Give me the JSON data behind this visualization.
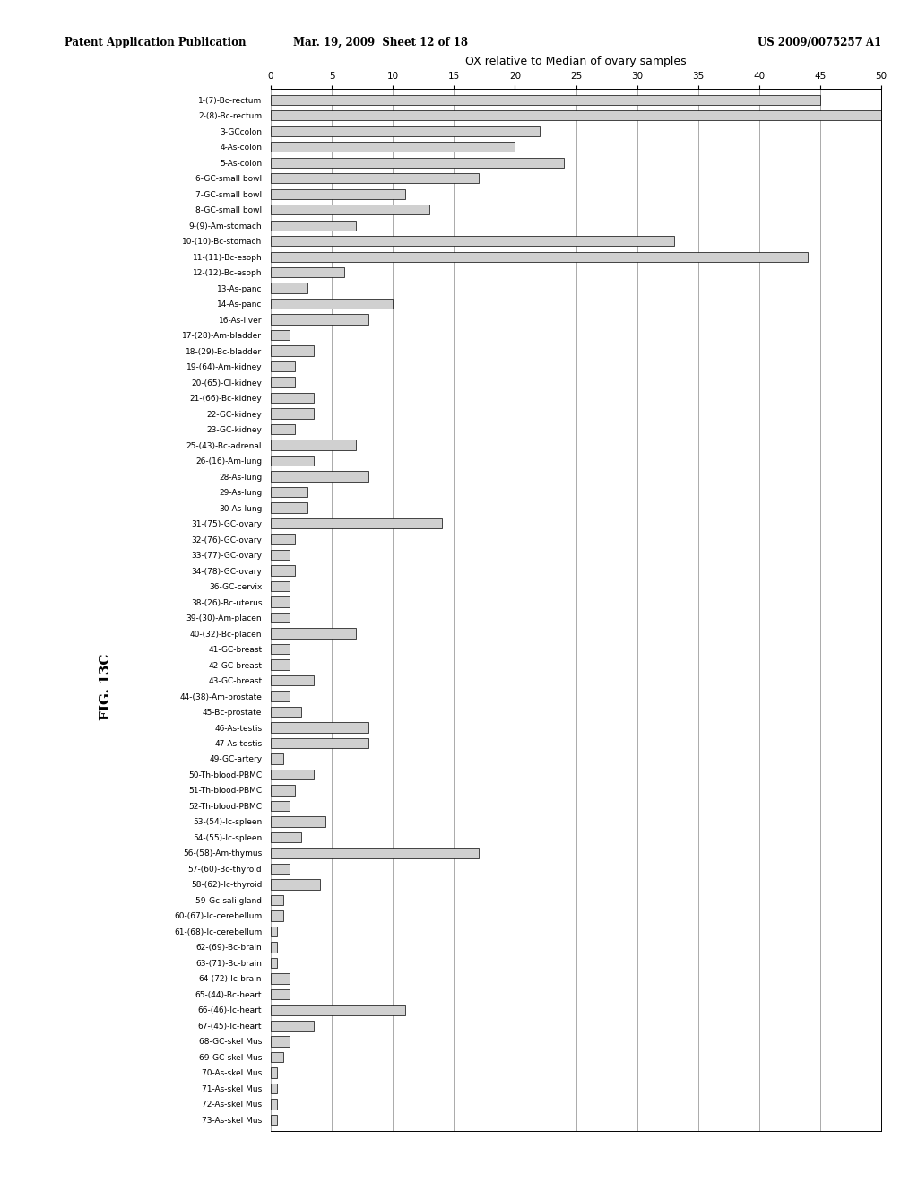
{
  "title": "OX relative to Median of ovary samples",
  "header_left": "Patent Application Publication",
  "header_center": "Mar. 19, 2009  Sheet 12 of 18",
  "header_right": "US 2009/0075257 A1",
  "fig_label": "FIG. 13C",
  "xlim": [
    0,
    50
  ],
  "xticks": [
    0,
    5,
    10,
    15,
    20,
    25,
    30,
    35,
    40,
    45,
    50
  ],
  "categories": [
    "1-(7)-Bc-rectum",
    "2-(8)-Bc-rectum",
    "3-GCcolon",
    "4-As-colon",
    "5-As-colon",
    "6-GC-small bowl",
    "7-GC-small bowl",
    "8-GC-small bowl",
    "9-(9)-Am-stomach",
    "10-(10)-Bc-stomach",
    "11-(11)-Bc-esoph",
    "12-(12)-Bc-esoph",
    "13-As-panc",
    "14-As-panc",
    "16-As-liver",
    "17-(28)-Am-bladder",
    "18-(29)-Bc-bladder",
    "19-(64)-Am-kidney",
    "20-(65)-Cl-kidney",
    "21-(66)-Bc-kidney",
    "22-GC-kidney",
    "23-GC-kidney",
    "25-(43)-Bc-adrenal",
    "26-(16)-Am-lung",
    "28-As-lung",
    "29-As-lung",
    "30-As-lung",
    "31-(75)-GC-ovary",
    "32-(76)-GC-ovary",
    "33-(77)-GC-ovary",
    "34-(78)-GC-ovary",
    "36-GC-cervix",
    "38-(26)-Bc-uterus",
    "39-(30)-Am-placen",
    "40-(32)-Bc-placen",
    "41-GC-breast",
    "42-GC-breast",
    "43-GC-breast",
    "44-(38)-Am-prostate",
    "45-Bc-prostate",
    "46-As-testis",
    "47-As-testis",
    "49-GC-artery",
    "50-Th-blood-PBMC",
    "51-Th-blood-PBMC",
    "52-Th-blood-PBMC",
    "53-(54)-lc-spleen",
    "54-(55)-lc-spleen",
    "56-(58)-Am-thymus",
    "57-(60)-Bc-thyroid",
    "58-(62)-lc-thyroid",
    "59-Gc-sali gland",
    "60-(67)-lc-cerebellum",
    "61-(68)-lc-cerebellum",
    "62-(69)-Bc-brain",
    "63-(71)-Bc-brain",
    "64-(72)-lc-brain",
    "65-(44)-Bc-heart",
    "66-(46)-lc-heart",
    "67-(45)-lc-heart",
    "68-GC-skel Mus",
    "69-GC-skel Mus",
    "70-As-skel Mus",
    "71-As-skel Mus",
    "72-As-skel Mus",
    "73-As-skel Mus"
  ],
  "values": [
    45,
    50,
    22,
    20,
    24,
    17,
    11,
    13,
    7,
    33,
    44,
    6,
    3,
    10,
    8,
    1.5,
    3.5,
    2,
    2,
    3.5,
    3.5,
    2,
    7,
    3.5,
    8,
    3,
    3,
    14,
    2,
    1.5,
    2,
    1.5,
    1.5,
    1.5,
    7,
    1.5,
    1.5,
    3.5,
    1.5,
    2.5,
    8,
    8,
    1,
    3.5,
    2,
    1.5,
    4.5,
    2.5,
    17,
    1.5,
    4,
    1,
    1,
    0.5,
    0.5,
    0.5,
    1.5,
    1.5,
    11,
    3.5,
    1.5,
    1,
    0.5,
    0.5,
    0.5,
    0.5
  ],
  "bar_color": "#d0d0d0",
  "bar_edge_color": "#000000",
  "background_color": "#ffffff"
}
